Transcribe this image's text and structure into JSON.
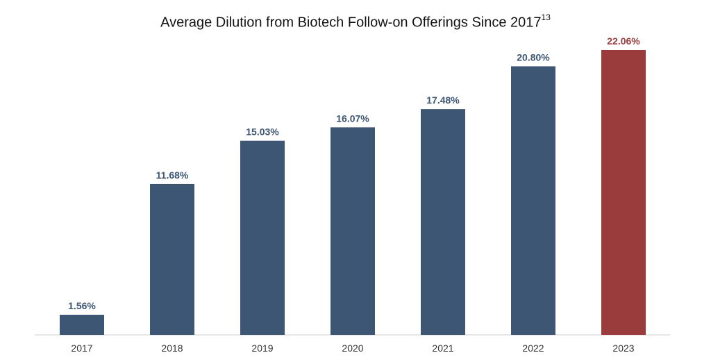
{
  "chart_data": {
    "type": "bar",
    "title": "Average Dilution from Biotech Follow-on Offerings Since 2017",
    "title_superscript": "13",
    "categories": [
      "2017",
      "2018",
      "2019",
      "2020",
      "2021",
      "2022",
      "2023"
    ],
    "values": [
      1.56,
      11.68,
      15.03,
      16.07,
      17.48,
      20.8,
      22.06
    ],
    "value_labels": [
      "1.56%",
      "11.68%",
      "15.03%",
      "16.07%",
      "17.48%",
      "20.80%",
      "22.06%"
    ],
    "xlabel": "",
    "ylabel": "",
    "ylim": [
      0,
      22.06
    ],
    "grid": false,
    "legend": "none",
    "colors": {
      "default_bar": "#3d5673",
      "highlight_bar": "#9b3c3c",
      "default_label": "#3d5673",
      "highlight_label": "#9b3c3c",
      "axis": "#cfcfcf"
    },
    "highlight_index": 6
  }
}
